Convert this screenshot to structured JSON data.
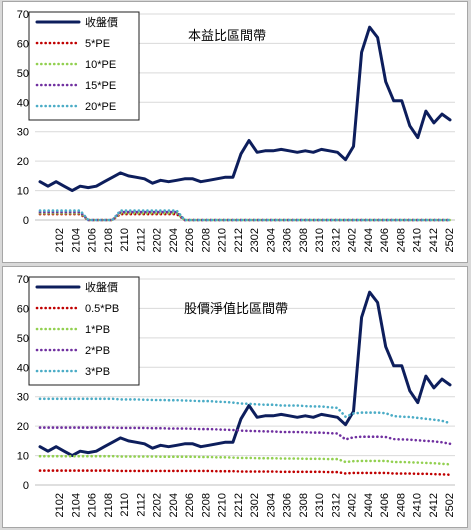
{
  "chart_data": [
    {
      "type": "line",
      "title": "本益比區間帶",
      "ylim": [
        0,
        70
      ],
      "yticks": [
        "0",
        "10",
        "20",
        "30",
        "40",
        "50",
        "60",
        "70"
      ],
      "xtick_labels": [
        "2102",
        "2104",
        "2106",
        "2108",
        "2110",
        "2112",
        "2202",
        "2204",
        "2206",
        "2208",
        "2210",
        "2212",
        "2302",
        "2304",
        "2306",
        "2308",
        "2310",
        "2312",
        "2402",
        "2404",
        "2406",
        "2408",
        "2410",
        "2412",
        "2502"
      ],
      "grid": "horizontal",
      "legend_position": "top-left",
      "series": [
        {
          "name": "收盤價",
          "color": "#0d1e5c",
          "style": "solid",
          "values": [
            13,
            11.5,
            13,
            11.5,
            10,
            11.5,
            11,
            11.5,
            13,
            14.5,
            16,
            15,
            14.5,
            14,
            12.5,
            13.5,
            13,
            13.5,
            14,
            14,
            13,
            13.5,
            14,
            14.5,
            14.5,
            22.5,
            27,
            23,
            23.5,
            23.5,
            24,
            23.5,
            23,
            23.5,
            23,
            24,
            23.5,
            23,
            20.5,
            25,
            57,
            65.5,
            62,
            47,
            40.5,
            40.5,
            32,
            28,
            37,
            33,
            36,
            34
          ]
        },
        {
          "name": "5*PE",
          "color": "#c00000",
          "style": "dotted",
          "values": [
            2,
            2,
            2,
            2,
            2,
            2,
            0,
            0,
            0,
            0,
            2,
            2,
            2,
            2,
            2,
            2,
            2,
            2,
            0,
            0,
            0,
            0,
            0,
            0,
            0,
            0,
            0,
            0,
            0,
            0,
            0,
            0,
            0,
            0,
            0,
            0,
            0,
            0,
            0,
            0,
            0,
            0,
            0,
            0,
            0,
            0,
            0,
            0,
            0,
            0,
            0,
            0
          ]
        },
        {
          "name": "10*PE",
          "color": "#92d050",
          "style": "dotted",
          "values": [
            2.3,
            2.3,
            2.3,
            2.3,
            2.3,
            2.3,
            0,
            0,
            0,
            0,
            2.3,
            2.3,
            2.3,
            2.3,
            2.3,
            2.3,
            2.3,
            2.3,
            0,
            0,
            0,
            0,
            0,
            0,
            0,
            0,
            0,
            0,
            0,
            0,
            0,
            0,
            0,
            0,
            0,
            0,
            0,
            0,
            0,
            0,
            0,
            0,
            0,
            0,
            0,
            0,
            0,
            0,
            0,
            0,
            0,
            0
          ]
        },
        {
          "name": "15*PE",
          "color": "#7030a0",
          "style": "dotted",
          "values": [
            2.7,
            2.7,
            2.7,
            2.7,
            2.7,
            2.7,
            0,
            0,
            0,
            0,
            2.7,
            2.7,
            2.7,
            2.7,
            2.7,
            2.7,
            2.7,
            2.7,
            0,
            0,
            0,
            0,
            0,
            0,
            0,
            0,
            0,
            0,
            0,
            0,
            0,
            0,
            0,
            0,
            0,
            0,
            0,
            0,
            0,
            0,
            0,
            0,
            0,
            0,
            0,
            0,
            0,
            0,
            0,
            0,
            0,
            0
          ]
        },
        {
          "name": "20*PE",
          "color": "#4bacc6",
          "style": "dotted",
          "values": [
            3.2,
            3.2,
            3.2,
            3.2,
            3.2,
            3.2,
            0,
            0,
            0,
            0,
            3.2,
            3.2,
            3.2,
            3.2,
            3.2,
            3.2,
            3.2,
            3.2,
            0,
            0,
            0,
            0,
            0,
            0,
            0,
            0,
            0,
            0,
            0,
            0,
            0,
            0,
            0,
            0,
            0,
            0,
            0,
            0,
            0,
            0,
            0,
            0,
            0,
            0,
            0,
            0,
            0,
            0,
            0,
            0,
            0,
            0
          ]
        }
      ]
    },
    {
      "type": "line",
      "title": "股價淨值比區間帶",
      "ylim": [
        0,
        70
      ],
      "yticks": [
        "0",
        "10",
        "20",
        "30",
        "40",
        "50",
        "60",
        "70"
      ],
      "xtick_labels": [
        "2102",
        "2104",
        "2106",
        "2108",
        "2110",
        "2112",
        "2202",
        "2204",
        "2206",
        "2208",
        "2210",
        "2212",
        "2302",
        "2304",
        "2306",
        "2308",
        "2310",
        "2312",
        "2402",
        "2404",
        "2406",
        "2408",
        "2410",
        "2412",
        "2502"
      ],
      "grid": "horizontal",
      "legend_position": "top-left",
      "series": [
        {
          "name": "收盤價",
          "color": "#0d1e5c",
          "style": "solid",
          "values": [
            13,
            11.5,
            13,
            11.5,
            10,
            11.5,
            11,
            11.5,
            13,
            14.5,
            16,
            15,
            14.5,
            14,
            12.5,
            13.5,
            13,
            13.5,
            14,
            14,
            13,
            13.5,
            14,
            14.5,
            14.5,
            22.5,
            27,
            23,
            23.5,
            23.5,
            24,
            23.5,
            23,
            23.5,
            23,
            24,
            23.5,
            23,
            20.5,
            25,
            57,
            65.5,
            62,
            47,
            40.5,
            40.5,
            32,
            28,
            37,
            33,
            36,
            34
          ]
        },
        {
          "name": "0.5*PB",
          "color": "#c00000",
          "style": "dotted",
          "values": [
            4.9,
            4.9,
            4.9,
            4.9,
            4.9,
            4.9,
            4.9,
            4.9,
            4.9,
            4.9,
            4.8,
            4.8,
            4.8,
            4.8,
            4.8,
            4.8,
            4.8,
            4.8,
            4.8,
            4.8,
            4.8,
            4.8,
            4.7,
            4.7,
            4.7,
            4.6,
            4.6,
            4.6,
            4.6,
            4.6,
            4.5,
            4.5,
            4.5,
            4.5,
            4.5,
            4.5,
            4.4,
            4.4,
            3.9,
            4.1,
            4.1,
            4.1,
            4.1,
            4.1,
            3.9,
            3.9,
            3.9,
            3.8,
            3.8,
            3.7,
            3.6,
            3.5
          ]
        },
        {
          "name": "1*PB",
          "color": "#92d050",
          "style": "dotted",
          "values": [
            9.8,
            9.8,
            9.8,
            9.8,
            9.8,
            9.8,
            9.8,
            9.8,
            9.8,
            9.8,
            9.7,
            9.7,
            9.7,
            9.7,
            9.7,
            9.6,
            9.6,
            9.6,
            9.6,
            9.6,
            9.5,
            9.5,
            9.4,
            9.4,
            9.3,
            9.2,
            9.2,
            9.1,
            9.1,
            9.1,
            9.0,
            9.0,
            9.0,
            8.9,
            8.9,
            8.9,
            8.8,
            8.8,
            7.8,
            8.1,
            8.2,
            8.2,
            8.2,
            8.2,
            7.8,
            7.8,
            7.7,
            7.6,
            7.5,
            7.4,
            7.2,
            7.0
          ]
        },
        {
          "name": "2*PB",
          "color": "#7030a0",
          "style": "dotted",
          "values": [
            19.5,
            19.5,
            19.5,
            19.5,
            19.5,
            19.5,
            19.5,
            19.5,
            19.5,
            19.5,
            19.4,
            19.4,
            19.4,
            19.4,
            19.3,
            19.3,
            19.2,
            19.2,
            19.2,
            19.1,
            19.0,
            19.0,
            18.9,
            18.8,
            18.7,
            18.5,
            18.4,
            18.3,
            18.2,
            18.2,
            18.0,
            18.0,
            18.0,
            17.9,
            17.8,
            17.8,
            17.6,
            17.5,
            15.5,
            16.2,
            16.4,
            16.4,
            16.4,
            16.3,
            15.6,
            15.5,
            15.4,
            15.2,
            15.0,
            14.8,
            14.5,
            14.0
          ]
        },
        {
          "name": "3*PB",
          "color": "#4bacc6",
          "style": "dotted",
          "values": [
            29.3,
            29.3,
            29.3,
            29.3,
            29.3,
            29.3,
            29.3,
            29.3,
            29.3,
            29.3,
            29.1,
            29.1,
            29.1,
            29.0,
            28.9,
            28.9,
            28.8,
            28.8,
            28.7,
            28.6,
            28.5,
            28.5,
            28.3,
            28.2,
            28.0,
            27.7,
            27.6,
            27.4,
            27.3,
            27.3,
            27.0,
            27.0,
            27.0,
            26.8,
            26.7,
            26.7,
            26.4,
            26.2,
            23.2,
            24.3,
            24.6,
            24.6,
            24.6,
            24.4,
            23.4,
            23.2,
            23.1,
            22.8,
            22.5,
            22.2,
            21.8,
            21.0
          ]
        }
      ]
    }
  ]
}
